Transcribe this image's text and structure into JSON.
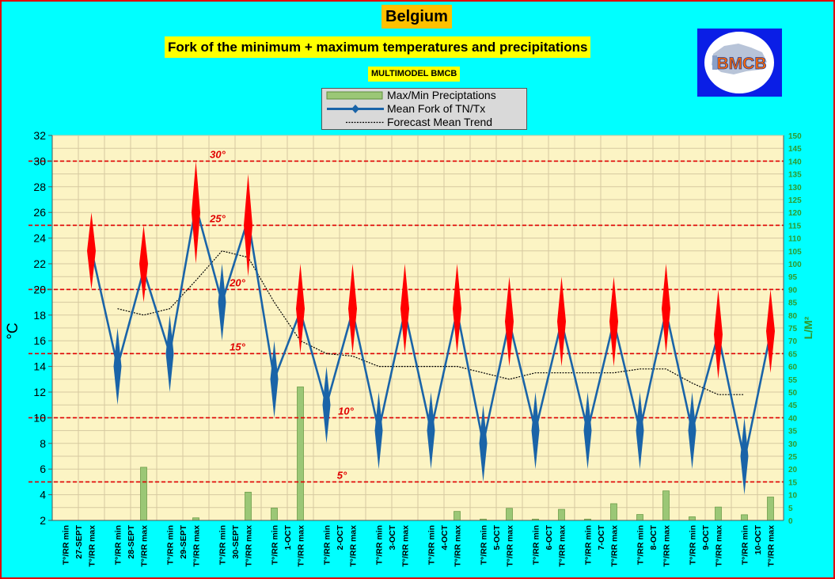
{
  "header": {
    "title": "Belgium",
    "subtitle": "Fork of the minimum + maximum temperatures and precipitations",
    "model": "MULTIMODEL BMCB"
  },
  "logo": {
    "text": "BMCB",
    "icon": "belgium-map-logo"
  },
  "legend": {
    "items": [
      {
        "label": "Max/Min Preciptations",
        "icon": "green-bar-swatch"
      },
      {
        "label": "Mean Fork of TN/Tx",
        "icon": "blue-diamond-line-swatch"
      },
      {
        "label": "Forecast Mean Trend",
        "icon": "black-dotted-line-swatch"
      }
    ]
  },
  "chart_data": {
    "type": "line",
    "ylabel": "°C",
    "y2label": "L/M²",
    "ylim": [
      2,
      32
    ],
    "y_ticks": [
      2,
      4,
      6,
      8,
      10,
      12,
      14,
      16,
      18,
      20,
      22,
      24,
      26,
      28,
      30,
      32
    ],
    "y2lim": [
      0,
      150
    ],
    "y2_ticks": [
      0,
      5,
      10,
      15,
      20,
      25,
      30,
      35,
      40,
      45,
      50,
      55,
      60,
      65,
      70,
      75,
      80,
      85,
      90,
      95,
      100,
      105,
      110,
      115,
      120,
      125,
      130,
      135,
      140,
      145,
      150
    ],
    "grid": true,
    "categories": [
      "T°/RR min",
      "T°/RR max",
      "T°/RR min",
      "T°/RR max",
      "T°/RR min",
      "T°/RR max",
      "T°/RR min",
      "T°/RR max",
      "T°/RR min",
      "T°/RR max",
      "T°/RR min",
      "T°/RR max",
      "T°/RR min",
      "T°/RR max",
      "T°/RR min",
      "T°/RR max",
      "T°/RR min",
      "T°/RR max",
      "T°/RR min",
      "T°/RR max",
      "T°/RR min",
      "T°/RR max",
      "T°/RR min",
      "T°/RR max",
      "T°/RR min",
      "T°/RR max",
      "T°/RR min",
      "T°/RR max"
    ],
    "dates": [
      "27-SEPT",
      "28-SEPT",
      "29-SEPT",
      "30-SEPT",
      "1-OCT",
      "2-OCT",
      "3-OCT",
      "4-OCT",
      "5-OCT",
      "6-OCT",
      "7-OCT",
      "8-OCT",
      "9-OCT",
      "10-OCT"
    ],
    "series": [
      {
        "name": "Mean Fork of TN/Tx",
        "values": [
          null,
          23.1,
          14.0,
          21.5,
          15.0,
          26.5,
          19.0,
          25.5,
          13.0,
          18.3,
          11.0,
          18.3,
          9.0,
          18.3,
          9.0,
          18.3,
          8.0,
          17.5,
          9.0,
          17.5,
          9.0,
          17.5,
          9.0,
          18.3,
          9.0,
          16.5,
          6.7,
          16.6
        ]
      },
      {
        "name": "Forecast Mean Trend",
        "values": [
          null,
          null,
          18.5,
          18.0,
          18.5,
          20.7,
          23.0,
          22.5,
          19.0,
          16.0,
          15.0,
          14.8,
          14.0,
          14.0,
          14.0,
          14.0,
          13.5,
          13.0,
          13.5,
          13.5,
          13.5,
          13.5,
          13.8,
          13.8,
          12.7,
          11.8,
          11.8,
          null
        ]
      },
      {
        "name": "Max/Min Preciptations",
        "axis": "right",
        "values": [
          0,
          0,
          0,
          20.7,
          0,
          1,
          0,
          11,
          4.8,
          52,
          0,
          0,
          0,
          0,
          0,
          3.5,
          0.5,
          4.7,
          0.5,
          4.3,
          0.5,
          6.5,
          2.3,
          11.5,
          1.4,
          5.2,
          2.2,
          9.1
        ]
      }
    ],
    "forks": [
      {
        "low": 20,
        "high": 26
      },
      {
        "low": 11,
        "high": 17
      },
      {
        "low": 19,
        "high": 25
      },
      {
        "low": 12,
        "high": 18
      },
      {
        "low": 22,
        "high": 30
      },
      {
        "low": 16,
        "high": 22
      },
      {
        "low": 21,
        "high": 29
      },
      {
        "low": 10,
        "high": 16
      },
      {
        "low": 15,
        "high": 22
      },
      {
        "low": 8,
        "high": 14
      },
      {
        "low": 15,
        "high": 22
      },
      {
        "low": 6,
        "high": 12
      },
      {
        "low": 15,
        "high": 22
      },
      {
        "low": 6,
        "high": 12
      },
      {
        "low": 15,
        "high": 22
      },
      {
        "low": 5,
        "high": 11
      },
      {
        "low": 14,
        "high": 21
      },
      {
        "low": 6,
        "high": 12
      },
      {
        "low": 14,
        "high": 21
      },
      {
        "low": 6,
        "high": 12
      },
      {
        "low": 14,
        "high": 21
      },
      {
        "low": 6,
        "high": 12
      },
      {
        "low": 15,
        "high": 22
      },
      {
        "low": 6,
        "high": 12
      },
      {
        "low": 13,
        "high": 20
      },
      {
        "low": 4,
        "high": 10
      },
      {
        "low": 13.5,
        "high": 20
      }
    ],
    "reference_lines": [
      {
        "value": 30,
        "label": "30°"
      },
      {
        "value": 25,
        "label": "25°"
      },
      {
        "value": 20,
        "label": "20°"
      },
      {
        "value": 15,
        "label": "15°"
      },
      {
        "value": 10,
        "label": "10°"
      },
      {
        "value": 5,
        "label": "5°"
      }
    ],
    "colors": {
      "plot_bg": "#fcf4c4",
      "grid": "#d6c9a0",
      "mean_line": "#1a64a8",
      "fork_max": "#ff0000",
      "fork_min": "#1a64a8",
      "precip": "#9bc776",
      "reference": "#e00000",
      "trend": "#000000",
      "y2_axis": "#2e9a2e"
    }
  }
}
